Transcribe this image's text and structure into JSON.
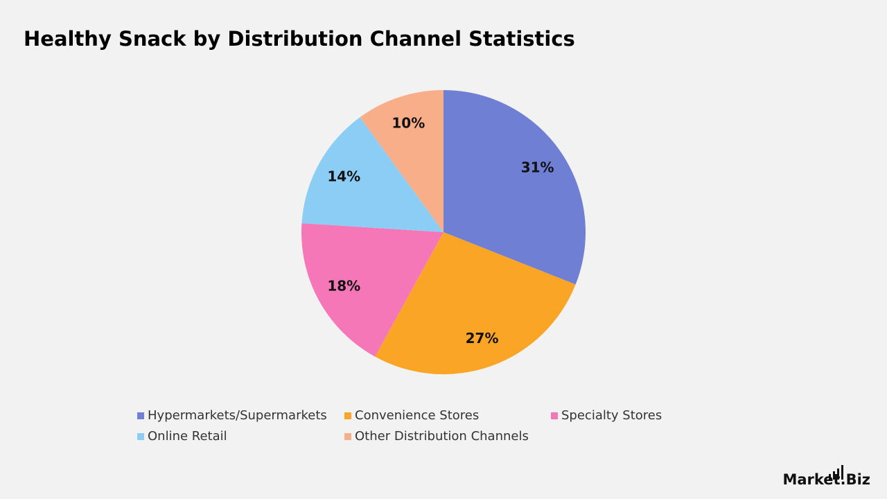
{
  "chart_data": {
    "type": "pie",
    "title": "Healthy Snack by Distribution Channel Statistics",
    "categories": [
      "Hypermarkets/Supermarkets",
      "Convenience Stores",
      "Specialty Stores",
      "Online Retail",
      "Other Distribution Channels"
    ],
    "values": [
      31,
      27,
      18,
      14,
      10
    ],
    "value_labels": [
      "31%",
      "27%",
      "18%",
      "14%",
      "10%"
    ],
    "colors": [
      "#6f7fd4",
      "#fba526",
      "#f577b8",
      "#8ccdf5",
      "#f9ae8a"
    ],
    "legend": "bottom"
  },
  "logo": "Market.Biz"
}
